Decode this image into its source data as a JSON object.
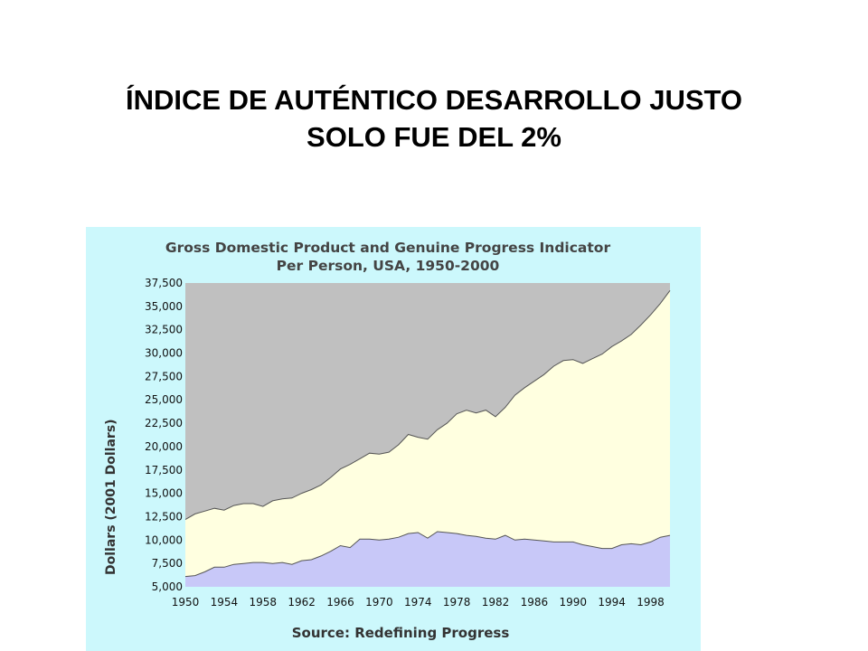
{
  "slide": {
    "title_line1": "ÍNDICE DE AUTÉNTICO DESARROLLO JUSTO",
    "title_line2": "SOLO FUE DEL 2%"
  },
  "chart_data": {
    "type": "area",
    "title_line1": "Gross Domestic Product and Genuine Progress Indicator",
    "title_line2": "Per Person, USA, 1950-2000",
    "ylabel": "Dollars (2001 Dollars)",
    "source": "Source: Redefining Progress",
    "xlim": [
      1950,
      2000
    ],
    "ylim": [
      5000,
      37500
    ],
    "x_ticks": [
      "1950",
      "1954",
      "1958",
      "1962",
      "1966",
      "1970",
      "1974",
      "1978",
      "1982",
      "1986",
      "1990",
      "1994",
      "1998"
    ],
    "y_ticks": [
      "37,500",
      "35,000",
      "32,500",
      "30,000",
      "27,500",
      "25,000",
      "22,500",
      "20,000",
      "17,500",
      "15,000",
      "12,500",
      "10,000",
      "7,500",
      "5,000"
    ],
    "grid": false,
    "colors": {
      "background": "#ccf8fc",
      "plot_background": "#c0c0c0",
      "gdp_fill": "#ffffe0",
      "gpi_fill": "#c8c8f8",
      "outline": "#555555"
    },
    "series": [
      {
        "values": [
          12200,
          12800,
          13100,
          13400,
          13200,
          13700,
          13900,
          13900,
          13600,
          14200,
          14400,
          14500,
          15000,
          15400,
          15900,
          16700,
          17600,
          18100,
          18700,
          19300,
          19200,
          19400,
          20200,
          21300,
          21000,
          20800,
          21800,
          22500,
          23500,
          23900,
          23600,
          23900,
          23200,
          24200,
          25500,
          26300,
          27000,
          27700,
          28600,
          29200,
          29300,
          28900,
          29400,
          29900,
          30700,
          31300,
          32000,
          33000,
          34100,
          35300,
          36700
        ]
      },
      {
        "values": [
          6100,
          6200,
          6600,
          7100,
          7100,
          7400,
          7500,
          7600,
          7600,
          7500,
          7600,
          7400,
          7800,
          7900,
          8300,
          8800,
          9400,
          9200,
          10100,
          10100,
          10000,
          10100,
          10300,
          10700,
          10800,
          10200,
          10900,
          10800,
          10700,
          10500,
          10400,
          10200,
          10100,
          10500,
          10000,
          10100,
          10000,
          9900,
          9800,
          9800,
          9800,
          9500,
          9300,
          9100,
          9100,
          9500,
          9600,
          9500,
          9800,
          10300,
          10500
        ]
      }
    ]
  }
}
